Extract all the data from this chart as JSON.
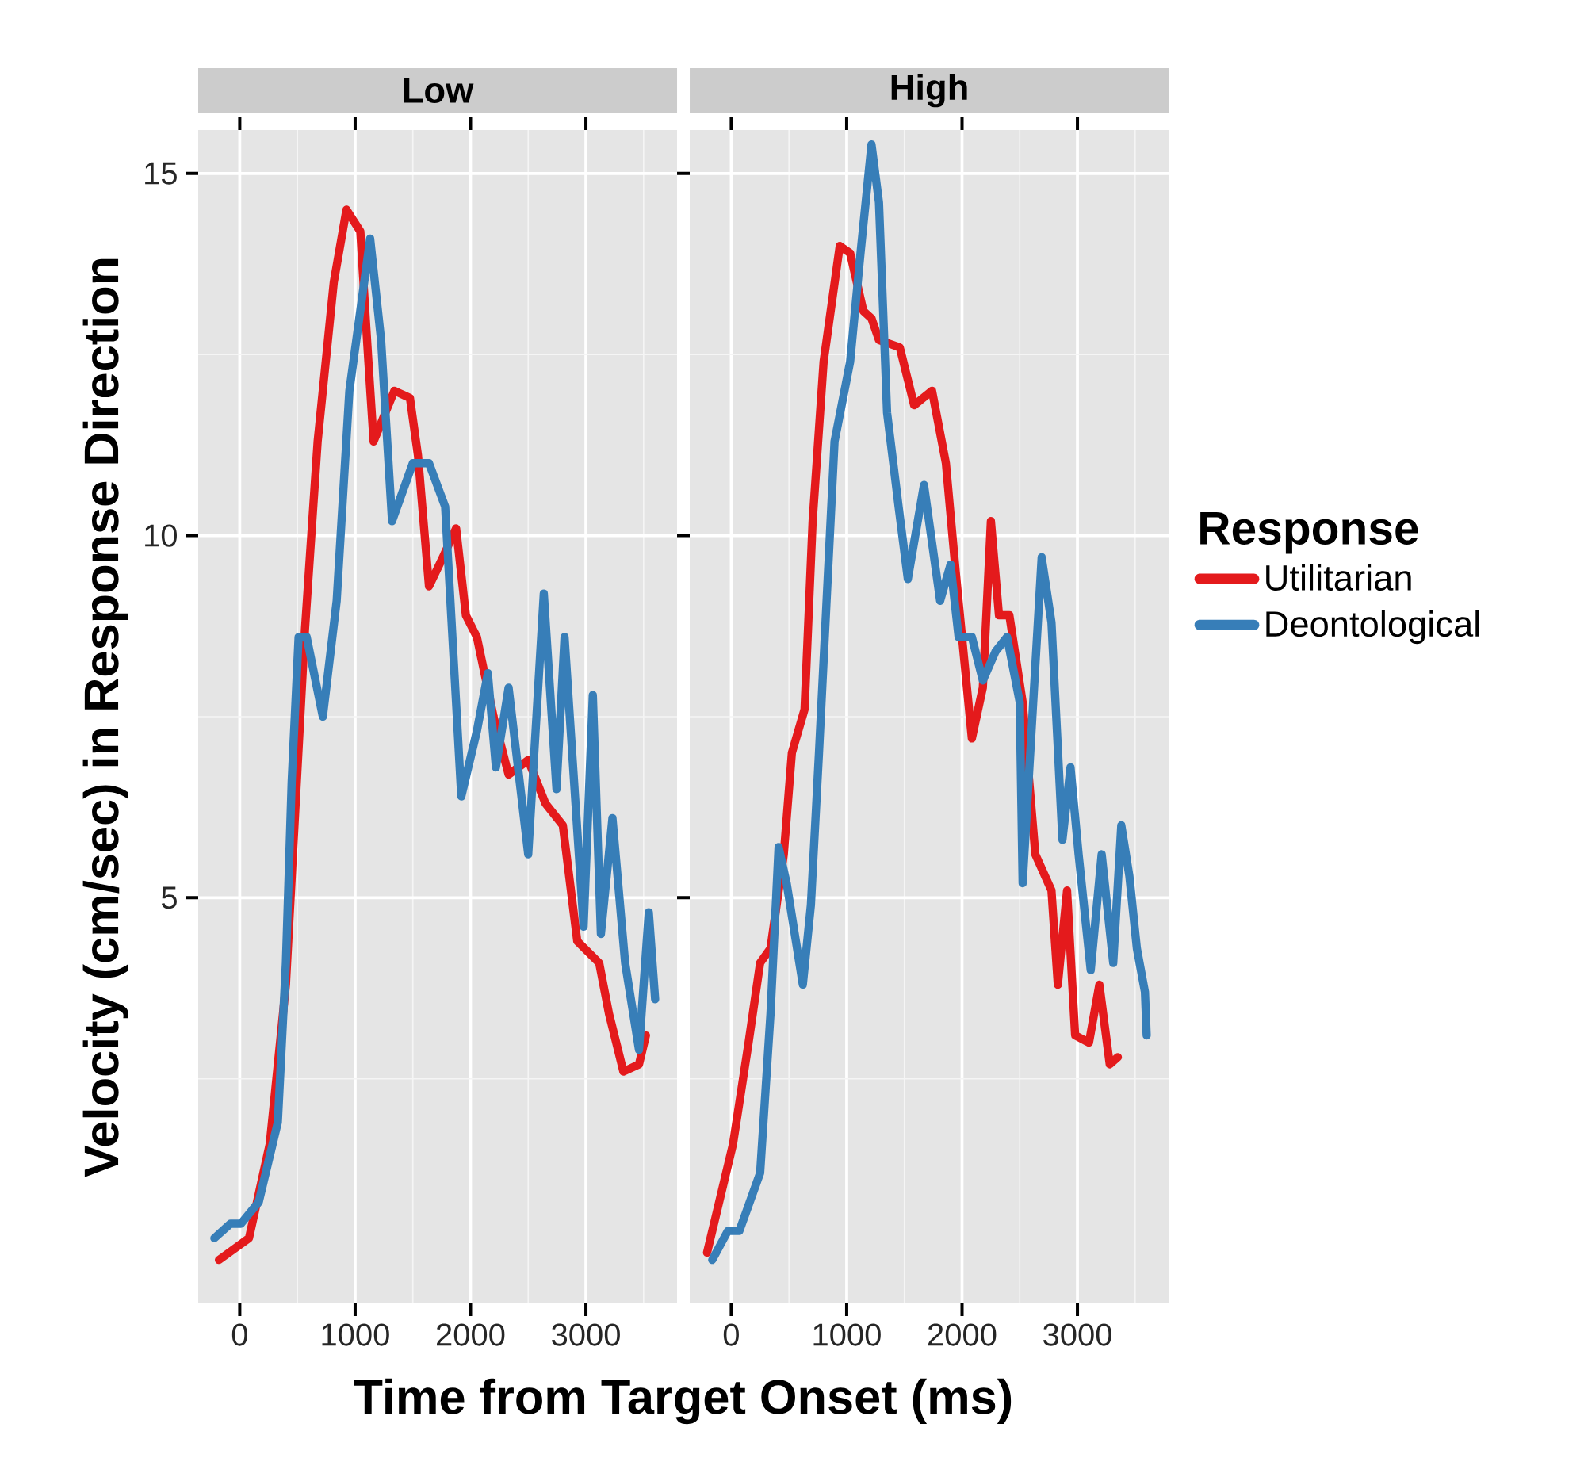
{
  "chart_data": [
    {
      "type": "line",
      "title": "Low",
      "xlabel": "Time from Target Onset (ms)",
      "ylabel": "Velocity (cm/sec) in Response Direction",
      "xlim": [
        -360,
        3790
      ],
      "ylim": [
        -0.6,
        15.6
      ],
      "xticks": [
        0,
        1000,
        2000,
        3000
      ],
      "yticks": [
        5,
        10,
        15
      ],
      "grid": true,
      "line_style": "solid",
      "marker": "none",
      "series": [
        {
          "color": "#e41a1c",
          "x": [
            -180,
            80,
            260,
            400,
            565,
            675,
            815,
            925,
            1045,
            1115,
            1160,
            1340,
            1475,
            1545,
            1640,
            1760,
            1875,
            1960,
            2055,
            2200,
            2330,
            2500,
            2650,
            2800,
            2925,
            3115,
            3200,
            3325,
            3460,
            3520
          ],
          "values": [
            0.0,
            0.3,
            1.6,
            3.8,
            8.7,
            11.3,
            13.5,
            14.5,
            14.2,
            12.4,
            11.3,
            12.0,
            11.9,
            11.1,
            9.3,
            9.7,
            10.1,
            8.9,
            8.6,
            7.5,
            6.7,
            6.9,
            6.3,
            6.0,
            4.4,
            4.1,
            3.4,
            2.6,
            2.7,
            3.1
          ]
        },
        {
          "color": "#377eb8",
          "x": [
            -220,
            -80,
            10,
            165,
            330,
            400,
            450,
            510,
            580,
            720,
            840,
            950,
            1130,
            1225,
            1320,
            1500,
            1640,
            1780,
            1920,
            2055,
            2150,
            2220,
            2330,
            2500,
            2635,
            2745,
            2815,
            2980,
            3060,
            3130,
            3230,
            3340,
            3460,
            3545,
            3600
          ],
          "values": [
            0.3,
            0.5,
            0.5,
            0.8,
            1.9,
            4.1,
            6.6,
            8.6,
            8.6,
            7.5,
            9.1,
            12.0,
            14.1,
            12.7,
            10.2,
            11.0,
            11.0,
            10.4,
            6.4,
            7.3,
            8.1,
            6.8,
            7.9,
            5.6,
            9.2,
            6.5,
            8.6,
            4.6,
            7.8,
            4.5,
            6.1,
            4.1,
            2.9,
            4.8,
            3.6
          ]
        }
      ]
    },
    {
      "type": "line",
      "title": "High",
      "legend_title": "Response",
      "legend": "right",
      "tick_labels": "x",
      "xlim": [
        -360,
        3790
      ],
      "ylim": [
        -0.6,
        15.6
      ],
      "xticks": [
        0,
        1000,
        2000,
        3000
      ],
      "yticks": [
        5,
        10,
        15
      ],
      "grid": true,
      "line_style": "solid",
      "marker": "none",
      "series": [
        {
          "name": "Utilitarian",
          "color": "#e41a1c",
          "x": [
            -210,
            15,
            150,
            250,
            340,
            455,
            525,
            635,
            705,
            800,
            940,
            1030,
            1145,
            1215,
            1280,
            1460,
            1585,
            1740,
            1860,
            1945,
            2085,
            2180,
            2250,
            2320,
            2410,
            2525,
            2635,
            2775,
            2830,
            2910,
            2980,
            3100,
            3190,
            3280,
            3350
          ],
          "values": [
            0.1,
            1.6,
            3.0,
            4.1,
            4.3,
            5.6,
            7.0,
            7.6,
            10.2,
            12.4,
            14.0,
            13.9,
            13.1,
            13.0,
            12.7,
            12.6,
            11.8,
            12.0,
            11.0,
            9.5,
            7.2,
            7.9,
            10.2,
            8.9,
            8.9,
            7.7,
            5.6,
            5.1,
            3.8,
            5.1,
            3.1,
            3.0,
            3.8,
            2.7,
            2.8
          ]
        },
        {
          "name": "Deontological",
          "color": "#377eb8",
          "x": [
            -165,
            -30,
            70,
            250,
            340,
            410,
            480,
            620,
            690,
            760,
            895,
            1030,
            1120,
            1215,
            1280,
            1350,
            1450,
            1530,
            1670,
            1810,
            1900,
            1970,
            2085,
            2180,
            2290,
            2390,
            2500,
            2525,
            2690,
            2775,
            2870,
            2940,
            3010,
            3115,
            3210,
            3310,
            3380,
            3450,
            3515,
            3585,
            3600
          ],
          "values": [
            0.0,
            0.4,
            0.4,
            1.2,
            3.4,
            5.7,
            5.2,
            3.8,
            4.9,
            7.0,
            11.3,
            12.4,
            13.9,
            15.4,
            14.6,
            11.7,
            10.4,
            9.4,
            10.7,
            9.1,
            9.6,
            8.6,
            8.6,
            8.0,
            8.4,
            8.6,
            7.7,
            5.2,
            9.7,
            8.8,
            5.8,
            6.8,
            5.6,
            4.0,
            5.6,
            4.1,
            6.0,
            5.3,
            4.3,
            3.7,
            3.1
          ]
        }
      ]
    }
  ]
}
